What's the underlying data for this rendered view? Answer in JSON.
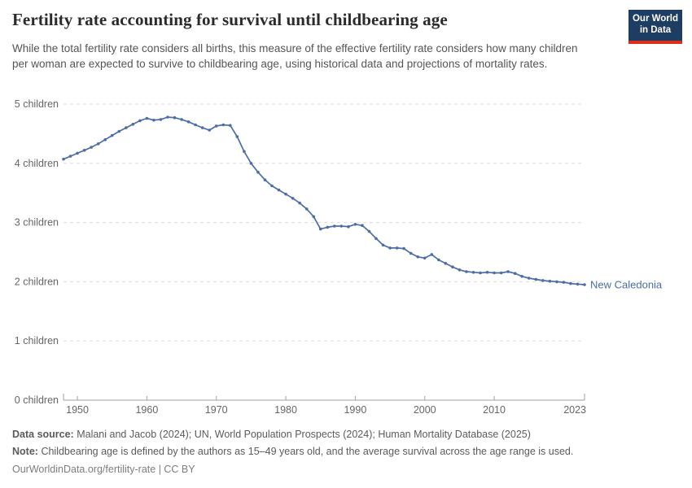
{
  "header": {
    "title": "Fertility rate accounting for survival until childbearing age",
    "subtitle": "While the total fertility rate considers all births, this measure of the effective fertility rate considers how many children per woman are expected to survive to childbearing age, using historical data and projections of mortality rates.",
    "logo": {
      "line1": "Our World",
      "line2": "in Data",
      "bg_color": "#1d3d63",
      "accent_color": "#dc2e1c"
    }
  },
  "chart_data": {
    "type": "line",
    "title": "Fertility rate accounting for survival until childbearing age",
    "xlabel": "",
    "ylabel": "",
    "xlim": [
      1948,
      2023
    ],
    "ylim": [
      0,
      5
    ],
    "grid": "horizontal-dashed",
    "legend_position": "end-of-line",
    "x_ticks": [
      1950,
      1960,
      1970,
      1980,
      1990,
      2000,
      2010,
      2023
    ],
    "y_ticks": [
      {
        "value": 0,
        "label": "0 children"
      },
      {
        "value": 1,
        "label": "1 children"
      },
      {
        "value": 2,
        "label": "2 children"
      },
      {
        "value": 3,
        "label": "3 children"
      },
      {
        "value": 4,
        "label": "4 children"
      },
      {
        "value": 5,
        "label": "5 children"
      }
    ],
    "series": [
      {
        "name": "New Caledonia",
        "color": "#4c6ea8",
        "years": [
          1948,
          1949,
          1950,
          1951,
          1952,
          1953,
          1954,
          1955,
          1956,
          1957,
          1958,
          1959,
          1960,
          1961,
          1962,
          1963,
          1964,
          1965,
          1966,
          1967,
          1968,
          1969,
          1970,
          1971,
          1972,
          1973,
          1974,
          1975,
          1976,
          1977,
          1978,
          1979,
          1980,
          1981,
          1982,
          1983,
          1984,
          1985,
          1986,
          1987,
          1988,
          1989,
          1990,
          1991,
          1992,
          1993,
          1994,
          1995,
          1996,
          1997,
          1998,
          1999,
          2000,
          2001,
          2002,
          2003,
          2004,
          2005,
          2006,
          2007,
          2008,
          2009,
          2010,
          2011,
          2012,
          2013,
          2014,
          2015,
          2016,
          2017,
          2018,
          2019,
          2020,
          2021,
          2022,
          2023
        ],
        "values": [
          4.07,
          4.12,
          4.17,
          4.22,
          4.27,
          4.33,
          4.4,
          4.47,
          4.54,
          4.6,
          4.66,
          4.72,
          4.76,
          4.73,
          4.74,
          4.78,
          4.77,
          4.74,
          4.7,
          4.65,
          4.6,
          4.56,
          4.63,
          4.65,
          4.64,
          4.45,
          4.2,
          4.0,
          3.85,
          3.72,
          3.62,
          3.55,
          3.48,
          3.41,
          3.33,
          3.23,
          3.1,
          2.89,
          2.92,
          2.94,
          2.94,
          2.93,
          2.97,
          2.95,
          2.85,
          2.73,
          2.62,
          2.57,
          2.57,
          2.56,
          2.48,
          2.42,
          2.4,
          2.46,
          2.37,
          2.31,
          2.25,
          2.2,
          2.17,
          2.16,
          2.15,
          2.16,
          2.15,
          2.15,
          2.17,
          2.14,
          2.09,
          2.06,
          2.04,
          2.02,
          2.01,
          2.0,
          1.99,
          1.97,
          1.96,
          1.95
        ]
      }
    ],
    "colors": {
      "line": "#4c6ea8",
      "grid": "#dcdcdc",
      "axis": "#a1a1a1",
      "tick_label": "#666666"
    }
  },
  "footer": {
    "data_source_label": "Data source:",
    "data_source": "Malani and Jacob (2024); UN, World Population Prospects (2024); Human Mortality Database (2025)",
    "note_label": "Note:",
    "note": "Childbearing age is defined by the authors as 15–49 years old, and the average survival across the age range is used.",
    "url_line": "OurWorldinData.org/fertility-rate | CC BY"
  }
}
